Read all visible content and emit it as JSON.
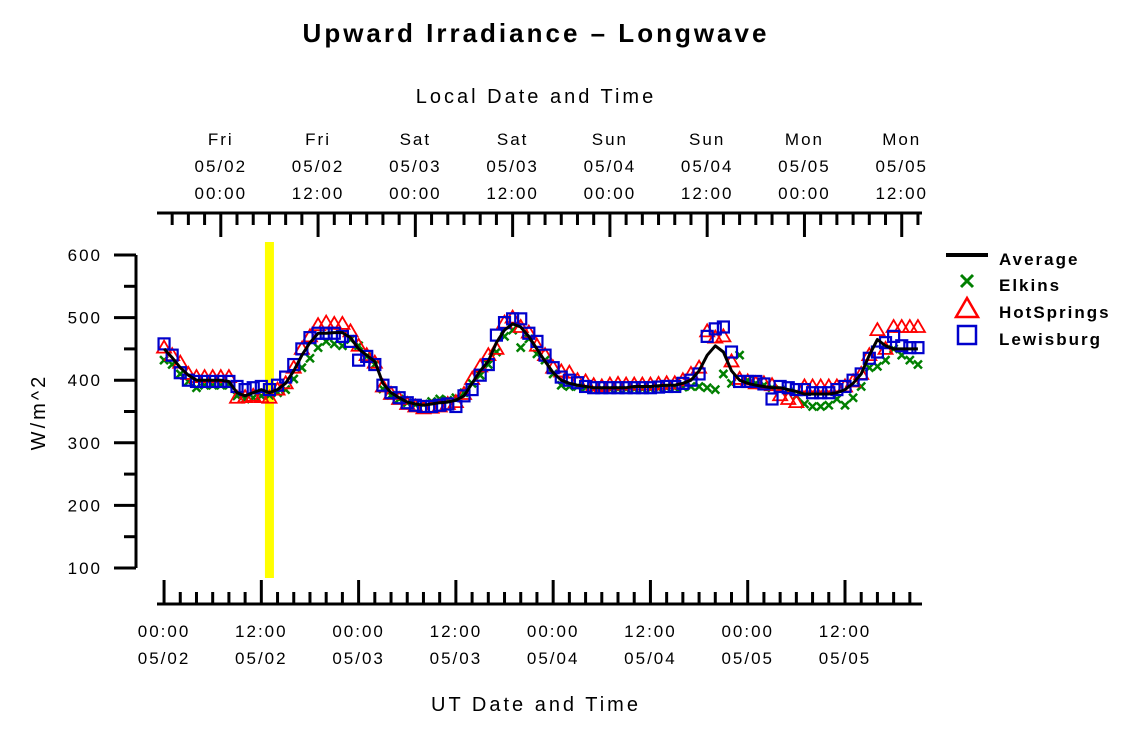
{
  "chart_data": {
    "type": "scatter",
    "title": "Upward Irradiance – Longwave",
    "top_axis_label": "Local Date and Time",
    "xlabel": "UT Date and Time",
    "ylabel": "W/m^2",
    "ylim": [
      100,
      600
    ],
    "y_ticks": [
      100,
      200,
      300,
      400,
      500,
      600
    ],
    "y_tick_labels": [
      "100",
      "200",
      "300",
      "400",
      "500",
      "600"
    ],
    "bottom_ticks": [
      {
        "hour": 0,
        "time": "00:00",
        "date": "05/02"
      },
      {
        "hour": 12,
        "time": "12:00",
        "date": "05/02"
      },
      {
        "hour": 24,
        "time": "00:00",
        "date": "05/03"
      },
      {
        "hour": 36,
        "time": "12:00",
        "date": "05/03"
      },
      {
        "hour": 48,
        "time": "00:00",
        "date": "05/04"
      },
      {
        "hour": 60,
        "time": "12:00",
        "date": "05/04"
      },
      {
        "hour": 72,
        "time": "00:00",
        "date": "05/05"
      },
      {
        "hour": 84,
        "time": "12:00",
        "date": "05/05"
      }
    ],
    "top_ticks": [
      {
        "hour": 7,
        "day": "Fri",
        "date": "05/02",
        "time": "00:00"
      },
      {
        "hour": 19,
        "day": "Fri",
        "date": "05/02",
        "time": "12:00"
      },
      {
        "hour": 31,
        "day": "Sat",
        "date": "05/03",
        "time": "00:00"
      },
      {
        "hour": 43,
        "day": "Sat",
        "date": "05/03",
        "time": "12:00"
      },
      {
        "hour": 55,
        "day": "Sun",
        "date": "05/04",
        "time": "00:00"
      },
      {
        "hour": 67,
        "day": "Sun",
        "date": "05/04",
        "time": "12:00"
      },
      {
        "hour": 79,
        "day": "Mon",
        "date": "05/05",
        "time": "00:00"
      },
      {
        "hour": 91,
        "day": "Mon",
        "date": "05/05",
        "time": "12:00"
      }
    ],
    "x_range_hours": [
      -0.5,
      93.5
    ],
    "highlight_hour": 13,
    "highlight_color": "#ffff00",
    "legend_position": "right",
    "series": [
      {
        "name": "Average",
        "marker": "line",
        "color": "#000000",
        "x": [
          0,
          1,
          2,
          3,
          4,
          5,
          6,
          7,
          8,
          9,
          10,
          11,
          12,
          13,
          14,
          15,
          16,
          17,
          18,
          19,
          20,
          21,
          22,
          23,
          24,
          25,
          26,
          27,
          28,
          29,
          30,
          31,
          32,
          33,
          34,
          35,
          36,
          37,
          38,
          39,
          40,
          41,
          42,
          43,
          44,
          45,
          46,
          47,
          48,
          49,
          50,
          51,
          52,
          53,
          54,
          55,
          56,
          57,
          58,
          59,
          60,
          61,
          62,
          63,
          64,
          65,
          66,
          67,
          68,
          69,
          70,
          71,
          72,
          73,
          74,
          75,
          76,
          77,
          78,
          79,
          80,
          81,
          82,
          83,
          84,
          85,
          86,
          87,
          88,
          89,
          90,
          91,
          92,
          93
        ],
        "y": [
          450,
          436,
          420,
          408,
          400,
          400,
          400,
          400,
          398,
          380,
          375,
          380,
          385,
          380,
          385,
          395,
          415,
          440,
          460,
          475,
          475,
          476,
          476,
          468,
          450,
          440,
          430,
          395,
          380,
          372,
          365,
          362,
          360,
          362,
          364,
          365,
          368,
          375,
          395,
          415,
          430,
          460,
          480,
          490,
          485,
          470,
          450,
          430,
          412,
          400,
          395,
          392,
          390,
          388,
          388,
          388,
          388,
          388,
          390,
          390,
          390,
          391,
          392,
          392,
          395,
          400,
          415,
          440,
          455,
          445,
          415,
          400,
          395,
          392,
          390,
          388,
          388,
          385,
          382,
          378,
          378,
          378,
          378,
          380,
          385,
          395,
          410,
          440,
          465,
          455,
          450,
          450,
          450,
          450
        ]
      },
      {
        "name": "Elkins",
        "marker": "x",
        "color": "#007f00",
        "x": [
          0,
          1,
          2,
          3,
          4,
          5,
          6,
          7,
          8,
          9,
          10,
          11,
          12,
          13,
          14,
          15,
          16,
          17,
          18,
          19,
          20,
          21,
          22,
          23,
          24,
          25,
          26,
          27,
          28,
          29,
          30,
          31,
          32,
          33,
          34,
          35,
          36,
          37,
          38,
          39,
          40,
          41,
          42,
          43,
          44,
          45,
          46,
          47,
          48,
          49,
          50,
          51,
          52,
          53,
          54,
          55,
          56,
          57,
          58,
          59,
          60,
          61,
          62,
          63,
          64,
          65,
          66,
          67,
          68,
          69,
          70,
          71,
          72,
          73,
          74,
          75,
          76,
          77,
          78,
          79,
          80,
          81,
          82,
          83,
          84,
          85,
          86,
          87,
          88,
          89,
          90,
          91,
          92,
          93
        ],
        "y": [
          432,
          425,
          410,
          398,
          388,
          392,
          392,
          392,
          392,
          375,
          370,
          372,
          375,
          376,
          380,
          385,
          402,
          420,
          435,
          452,
          462,
          458,
          455,
          465,
          455,
          438,
          425,
          386,
          376,
          370,
          364,
          361,
          362,
          366,
          370,
          368,
          372,
          380,
          395,
          408,
          425,
          445,
          470,
          480,
          452,
          466,
          442,
          432,
          410,
          392,
          390,
          390,
          388,
          386,
          386,
          386,
          386,
          386,
          386,
          386,
          386,
          387,
          388,
          388,
          389,
          390,
          390,
          388,
          385,
          410,
          395,
          440,
          400,
          395,
          392,
          388,
          385,
          382,
          375,
          362,
          358,
          358,
          360,
          370,
          360,
          372,
          390,
          420,
          422,
          432,
          450,
          440,
          432,
          425
        ]
      },
      {
        "name": "HotSprings",
        "marker": "triangle",
        "color": "#ff0000",
        "x": [
          0,
          1,
          2,
          3,
          4,
          5,
          6,
          7,
          8,
          9,
          10,
          11,
          12,
          13,
          14,
          15,
          16,
          17,
          18,
          19,
          20,
          21,
          22,
          23,
          24,
          25,
          26,
          27,
          28,
          29,
          30,
          31,
          32,
          33,
          34,
          35,
          36,
          37,
          38,
          39,
          40,
          41,
          42,
          43,
          44,
          45,
          46,
          47,
          48,
          49,
          50,
          51,
          52,
          53,
          54,
          55,
          56,
          57,
          58,
          59,
          60,
          61,
          62,
          63,
          64,
          65,
          66,
          67,
          68,
          69,
          70,
          71,
          72,
          73,
          74,
          75,
          76,
          77,
          78,
          79,
          80,
          81,
          82,
          83,
          84,
          85,
          86,
          87,
          88,
          89,
          90,
          91,
          92,
          93
        ],
        "y": [
          452,
          440,
          428,
          410,
          405,
          405,
          405,
          405,
          405,
          372,
          373,
          375,
          373,
          372,
          385,
          395,
          420,
          450,
          470,
          488,
          492,
          490,
          490,
          478,
          455,
          440,
          428,
          390,
          378,
          370,
          362,
          358,
          355,
          356,
          358,
          362,
          365,
          378,
          402,
          422,
          440,
          450,
          492,
          500,
          485,
          476,
          455,
          440,
          420,
          414,
          412,
          400,
          398,
          392,
          390,
          393,
          394,
          393,
          393,
          393,
          393,
          394,
          395,
          395,
          400,
          410,
          420,
          478,
          468,
          470,
          430,
          402,
          398,
          395,
          395,
          392,
          376,
          370,
          365,
          390,
          390,
          390,
          390,
          390,
          390,
          398,
          410,
          440,
          480,
          450,
          485,
          485,
          485,
          485
        ]
      },
      {
        "name": "Lewisburg",
        "marker": "square",
        "color": "#0000cc",
        "x": [
          0,
          1,
          2,
          3,
          4,
          5,
          6,
          7,
          8,
          9,
          10,
          11,
          12,
          13,
          14,
          15,
          16,
          17,
          18,
          19,
          20,
          21,
          22,
          23,
          24,
          25,
          26,
          27,
          28,
          29,
          30,
          31,
          32,
          33,
          34,
          35,
          36,
          37,
          38,
          39,
          40,
          41,
          42,
          43,
          44,
          45,
          46,
          47,
          48,
          49,
          50,
          51,
          52,
          53,
          54,
          55,
          56,
          57,
          58,
          59,
          60,
          61,
          62,
          63,
          64,
          65,
          66,
          67,
          68,
          69,
          70,
          71,
          72,
          73,
          74,
          75,
          76,
          77,
          78,
          79,
          80,
          81,
          82,
          83,
          84,
          85,
          86,
          87,
          88,
          89,
          90,
          91,
          92,
          93
        ],
        "y": [
          458,
          440,
          412,
          400,
          398,
          398,
          398,
          398,
          398,
          390,
          385,
          388,
          390,
          385,
          392,
          405,
          425,
          450,
          468,
          475,
          475,
          475,
          470,
          462,
          432,
          438,
          425,
          392,
          380,
          372,
          364,
          360,
          358,
          358,
          360,
          362,
          358,
          375,
          385,
          408,
          425,
          472,
          492,
          498,
          498,
          475,
          462,
          440,
          420,
          405,
          400,
          396,
          390,
          388,
          388,
          388,
          388,
          388,
          388,
          388,
          388,
          389,
          390,
          390,
          395,
          400,
          410,
          470,
          482,
          485,
          445,
          398,
          398,
          398,
          394,
          370,
          390,
          388,
          385,
          385,
          380,
          380,
          380,
          385,
          390,
          400,
          410,
          435,
          445,
          460,
          470,
          455,
          452,
          452
        ]
      }
    ]
  }
}
